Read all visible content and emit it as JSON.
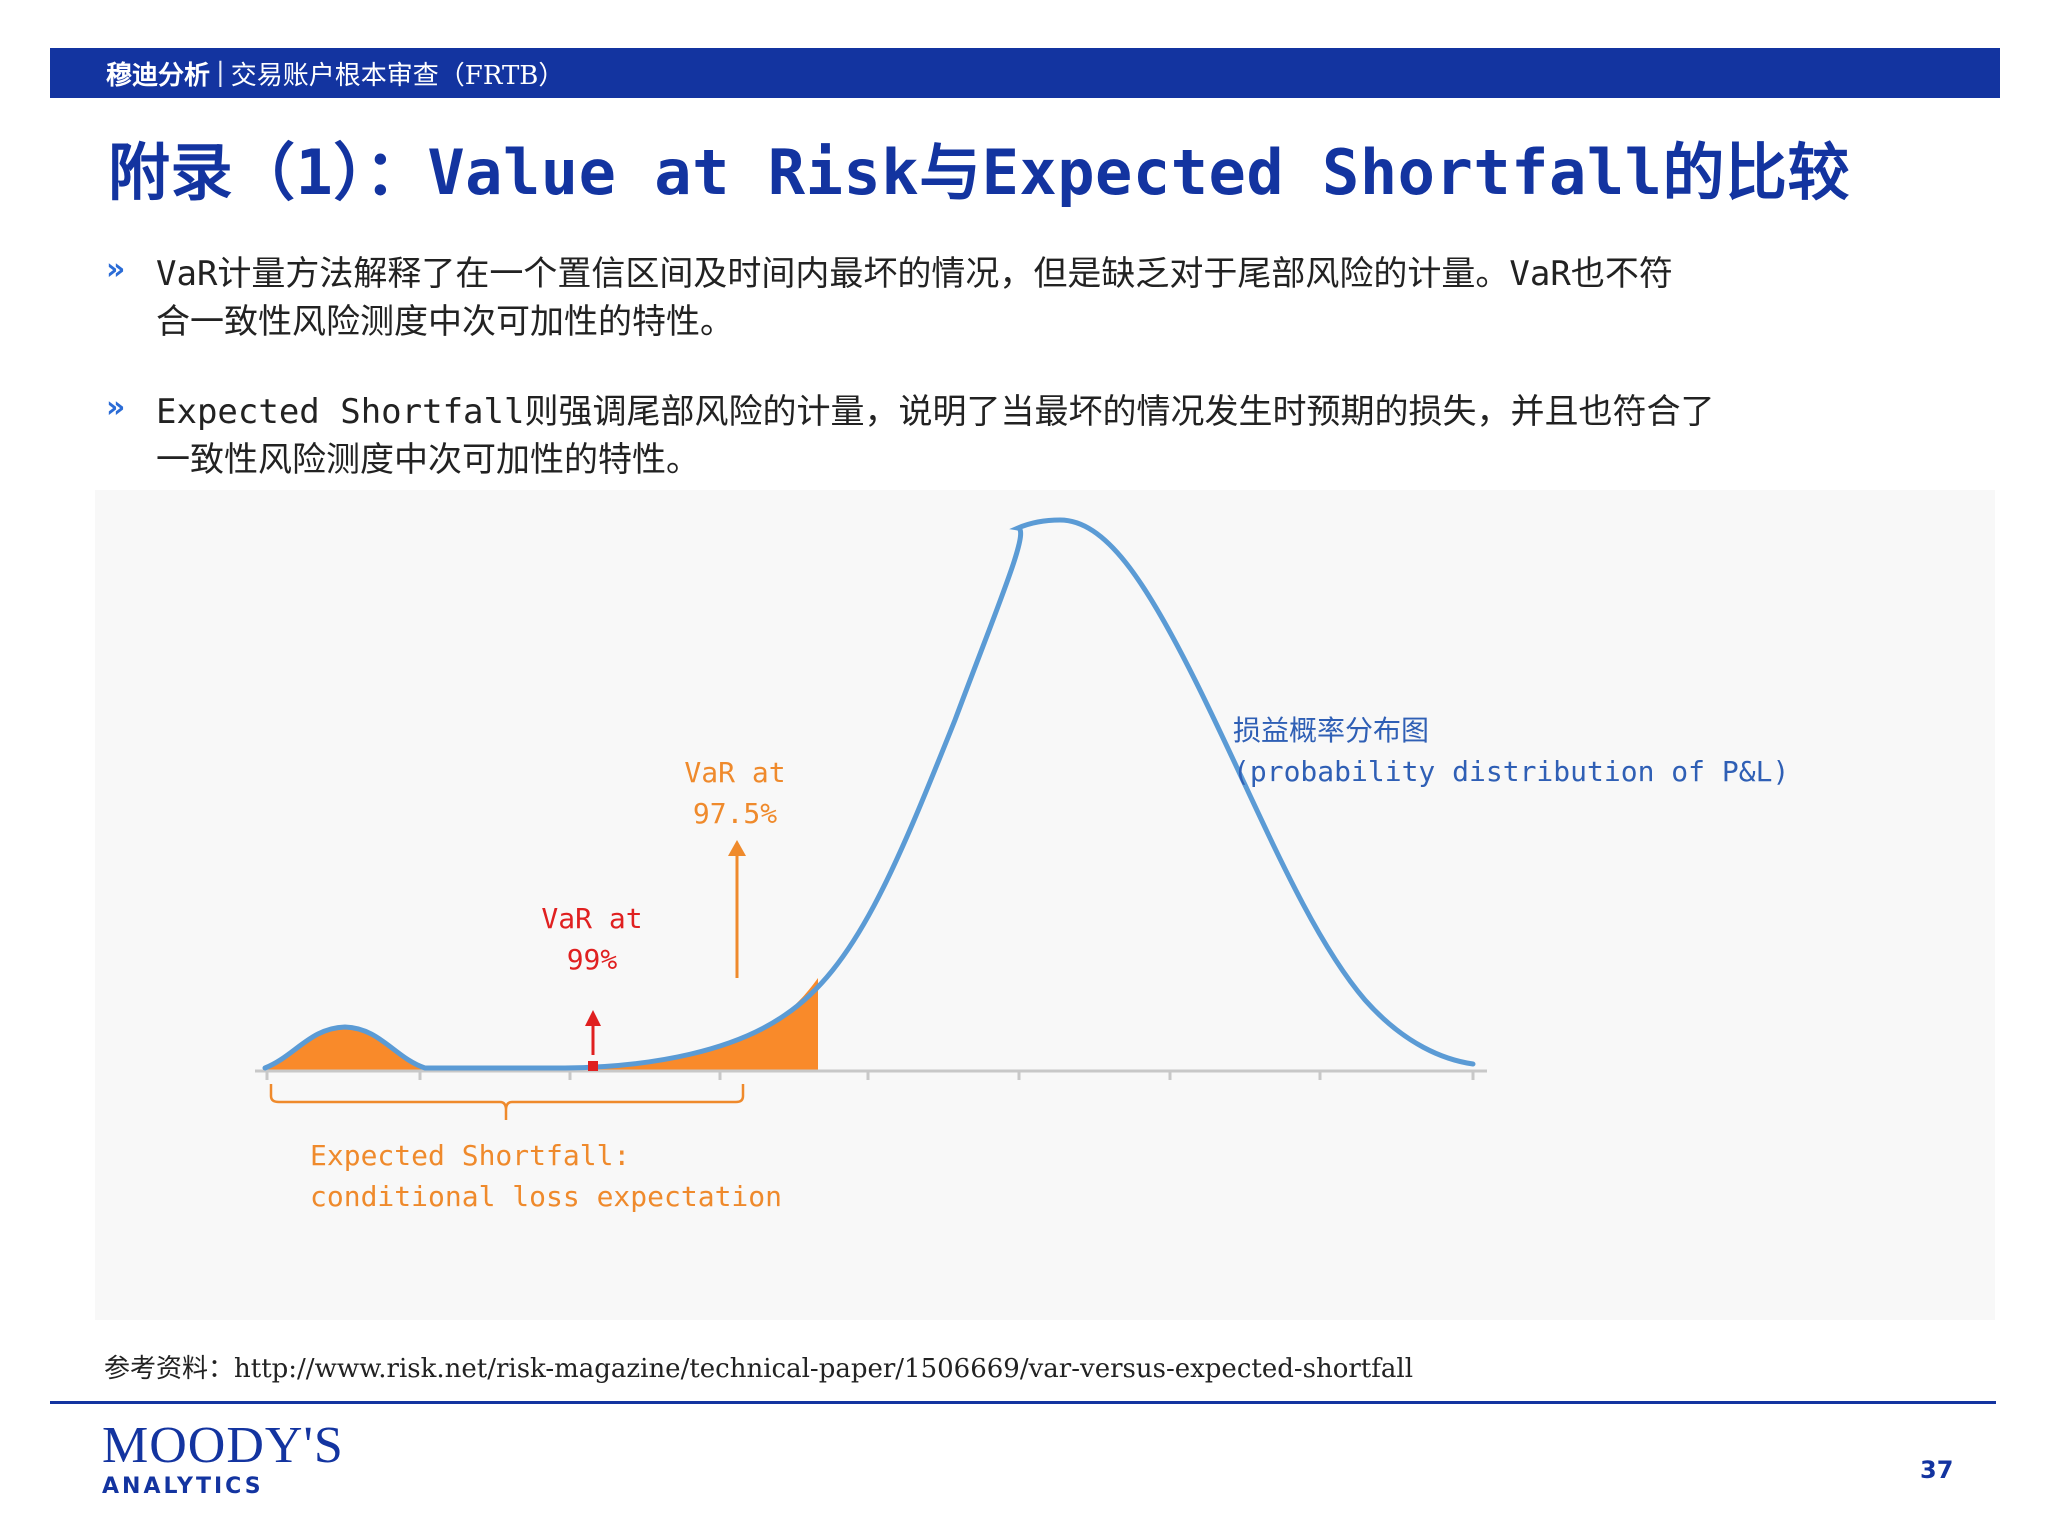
{
  "header": {
    "brand": "穆迪分析",
    "separator": "|",
    "topic": "交易账户根本审查（FRTB）"
  },
  "title": "附录（1）：Value at Risk与Expected Shortfall的比较",
  "bullets": [
    {
      "marker": "»",
      "lines": [
        "VaR计量方法解释了在一个置信区间及时间内最坏的情况，但是缺乏对于尾部风险的计量。VaR也不符",
        "合一致性风险测度中次可加性的特性。"
      ]
    },
    {
      "marker": "»",
      "lines": [
        "Expected Shortfall则强调尾部风险的计量，说明了当最坏的情况发生时预期的损失，并且也符合了",
        "一致性风险测度中次可加性的特性。"
      ]
    }
  ],
  "figure": {
    "var975_label": [
      "VaR at",
      "97.5%"
    ],
    "var99_label": [
      "VaR at",
      "99%"
    ],
    "curve_label": [
      "损益概率分布图",
      "(probability distribution of P&L)"
    ],
    "es_label": [
      "Expected Shortfall:",
      "conditional loss expectation"
    ],
    "colors": {
      "curve": "#5b9bd5",
      "tail_fill": "#f98a2a",
      "var975": "#ef8a2c",
      "var99": "#e02020",
      "curve_label": "#2f5fb5",
      "es_label": "#ef8a2c"
    }
  },
  "reference": "参考资料：http://www.risk.net/risk-magazine/technical-paper/1506669/var-versus-expected-shortfall",
  "footer": {
    "logo_name": "MOODY'S",
    "logo_sub": "ANALYTICS",
    "page_number": "37"
  }
}
